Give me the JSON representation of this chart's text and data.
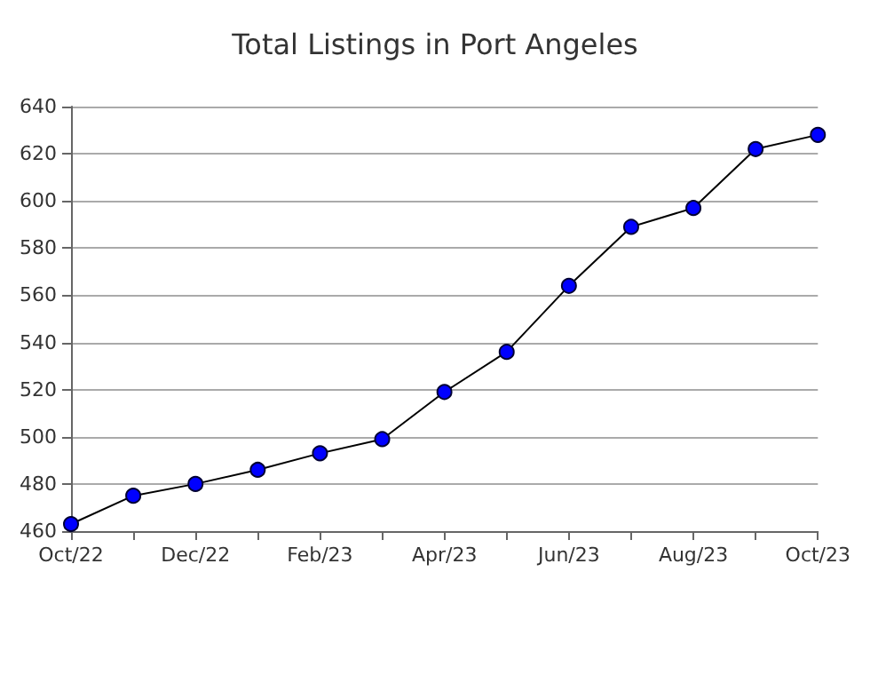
{
  "chart_data": {
    "type": "line",
    "title": "Total Listings in Port Angeles",
    "categories": [
      "Oct/22",
      null,
      "Dec/22",
      null,
      "Feb/23",
      null,
      "Apr/23",
      null,
      "Jun/23",
      null,
      "Aug/23",
      null,
      "Oct/23"
    ],
    "series": [
      {
        "color": "#0000ff",
        "values": [
          463,
          475,
          480,
          486,
          493,
          499,
          519,
          536,
          564,
          589,
          597,
          622,
          628
        ]
      }
    ],
    "ylim": [
      460,
      640
    ],
    "yticks": [
      460,
      480,
      500,
      520,
      540,
      560,
      580,
      600,
      620,
      640
    ],
    "grid": "y",
    "marker": "circle",
    "line_style": "solid"
  }
}
